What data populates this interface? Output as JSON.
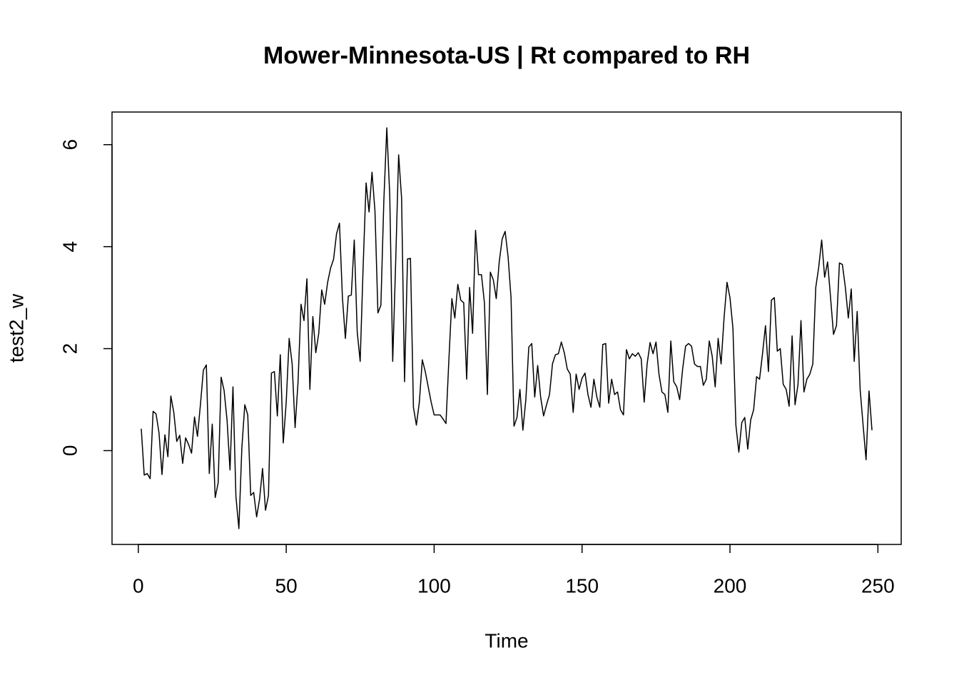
{
  "chart_data": {
    "type": "line",
    "title": "Mower-Minnesota-US | Rt compared to RH",
    "xlabel": "Time",
    "ylabel": "test2_w",
    "x": [
      1,
      2,
      3,
      4,
      5,
      6,
      7,
      8,
      9,
      10,
      11,
      12,
      13,
      14,
      15,
      16,
      17,
      18,
      19,
      20,
      21,
      22,
      23,
      24,
      25,
      26,
      27,
      28,
      29,
      30,
      31,
      32,
      33,
      34,
      35,
      36,
      37,
      38,
      39,
      40,
      41,
      42,
      43,
      44,
      45,
      46,
      47,
      48,
      49,
      50,
      51,
      52,
      53,
      54,
      55,
      56,
      57,
      58,
      59,
      60,
      61,
      62,
      63,
      64,
      65,
      66,
      67,
      68,
      69,
      70,
      71,
      72,
      73,
      74,
      75,
      76,
      77,
      78,
      79,
      80,
      81,
      82,
      83,
      84,
      85,
      86,
      87,
      88,
      89,
      90,
      91,
      92,
      93,
      94,
      95,
      96,
      97,
      98,
      99,
      100,
      101,
      102,
      103,
      104,
      105,
      106,
      107,
      108,
      109,
      110,
      111,
      112,
      113,
      114,
      115,
      116,
      117,
      118,
      119,
      120,
      121,
      122,
      123,
      124,
      125,
      126,
      127,
      128,
      129,
      130,
      131,
      132,
      133,
      134,
      135,
      136,
      137,
      138,
      139,
      140,
      141,
      142,
      143,
      144,
      145,
      146,
      147,
      148,
      149,
      150,
      151,
      152,
      153,
      154,
      155,
      156,
      157,
      158,
      159,
      160,
      161,
      162,
      163,
      164,
      165,
      166,
      167,
      168,
      169,
      170,
      171,
      172,
      173,
      174,
      175,
      176,
      177,
      178,
      179,
      180,
      181,
      182,
      183,
      184,
      185,
      186,
      187,
      188,
      189,
      190,
      191,
      192,
      193,
      194,
      195,
      196,
      197,
      198,
      199,
      200,
      201,
      202,
      203,
      204,
      205,
      206,
      207,
      208,
      209,
      210,
      211,
      212,
      213,
      214,
      215,
      216,
      217,
      218,
      219,
      220,
      221,
      222,
      223,
      224,
      225,
      226,
      227,
      228,
      229,
      230,
      231,
      232,
      233,
      234,
      235,
      236,
      237,
      238,
      239,
      240,
      241,
      242,
      243,
      244,
      245,
      246,
      247,
      248
    ],
    "series": [
      {
        "name": "test2_w",
        "color": "#000000",
        "values": [
          0.43,
          -0.48,
          -0.45,
          -0.55,
          0.77,
          0.72,
          0.35,
          -0.47,
          0.31,
          -0.12,
          1.07,
          0.75,
          0.18,
          0.3,
          -0.25,
          0.25,
          0.12,
          -0.05,
          0.66,
          0.28,
          0.9,
          1.58,
          1.68,
          -0.45,
          0.52,
          -0.92,
          -0.63,
          1.44,
          1.18,
          0.6,
          -0.38,
          1.25,
          -0.9,
          -1.53,
          0.05,
          0.9,
          0.7,
          -0.88,
          -0.82,
          -1.3,
          -0.95,
          -0.35,
          -1.17,
          -0.88,
          1.52,
          1.55,
          0.68,
          1.88,
          0.15,
          0.95,
          2.2,
          1.7,
          0.45,
          1.35,
          2.87,
          2.55,
          3.37,
          1.2,
          2.63,
          1.92,
          2.3,
          3.15,
          2.87,
          3.3,
          3.58,
          3.75,
          4.25,
          4.46,
          3.0,
          2.2,
          3.03,
          3.05,
          4.13,
          2.33,
          1.75,
          3.6,
          5.25,
          4.68,
          5.46,
          4.7,
          2.7,
          2.85,
          4.9,
          6.33,
          5.0,
          1.75,
          3.7,
          5.8,
          4.95,
          1.35,
          3.76,
          3.77,
          0.85,
          0.5,
          0.95,
          1.78,
          1.55,
          1.25,
          0.95,
          0.7,
          0.7,
          0.7,
          0.62,
          0.53,
          1.8,
          2.98,
          2.6,
          3.26,
          2.95,
          2.9,
          1.4,
          3.2,
          2.3,
          4.32,
          3.45,
          3.45,
          2.9,
          1.1,
          3.5,
          3.35,
          2.98,
          3.7,
          4.15,
          4.3,
          3.8,
          3.0,
          0.48,
          0.65,
          1.2,
          0.4,
          1.0,
          2.03,
          2.1,
          1.05,
          1.67,
          1.05,
          0.68,
          0.9,
          1.1,
          1.7,
          1.88,
          1.9,
          2.13,
          1.92,
          1.6,
          1.5,
          0.75,
          1.5,
          1.2,
          1.42,
          1.52,
          1.1,
          0.85,
          1.4,
          1.05,
          0.85,
          2.08,
          2.1,
          0.93,
          1.4,
          1.1,
          1.15,
          0.8,
          0.7,
          1.98,
          1.8,
          1.9,
          1.85,
          1.92,
          1.8,
          0.95,
          1.7,
          2.12,
          1.9,
          2.13,
          1.5,
          1.15,
          1.1,
          0.75,
          2.15,
          1.35,
          1.25,
          1.0,
          1.6,
          2.05,
          2.1,
          2.05,
          1.7,
          1.65,
          1.65,
          1.28,
          1.4,
          2.15,
          1.85,
          1.25,
          2.2,
          1.7,
          2.6,
          3.3,
          3.0,
          2.4,
          0.5,
          -0.03,
          0.55,
          0.65,
          0.03,
          0.6,
          0.8,
          1.45,
          1.4,
          1.9,
          2.45,
          1.55,
          2.95,
          3.0,
          1.95,
          2.0,
          1.3,
          1.2,
          0.87,
          2.25,
          0.9,
          1.3,
          2.55,
          1.15,
          1.4,
          1.5,
          1.7,
          3.2,
          3.6,
          4.13,
          3.4,
          3.7,
          3.0,
          2.28,
          2.45,
          3.68,
          3.65,
          3.2,
          2.6,
          3.17,
          1.75,
          2.73,
          1.2,
          0.5,
          -0.18,
          1.17,
          0.4
        ]
      }
    ],
    "xlim": [
      -8.88,
      257.88
    ],
    "ylim": [
      -1.84,
      6.64
    ],
    "xticks": [
      0,
      50,
      100,
      150,
      200,
      250
    ],
    "yticks": [
      0,
      2,
      4,
      6
    ],
    "grid": false
  }
}
